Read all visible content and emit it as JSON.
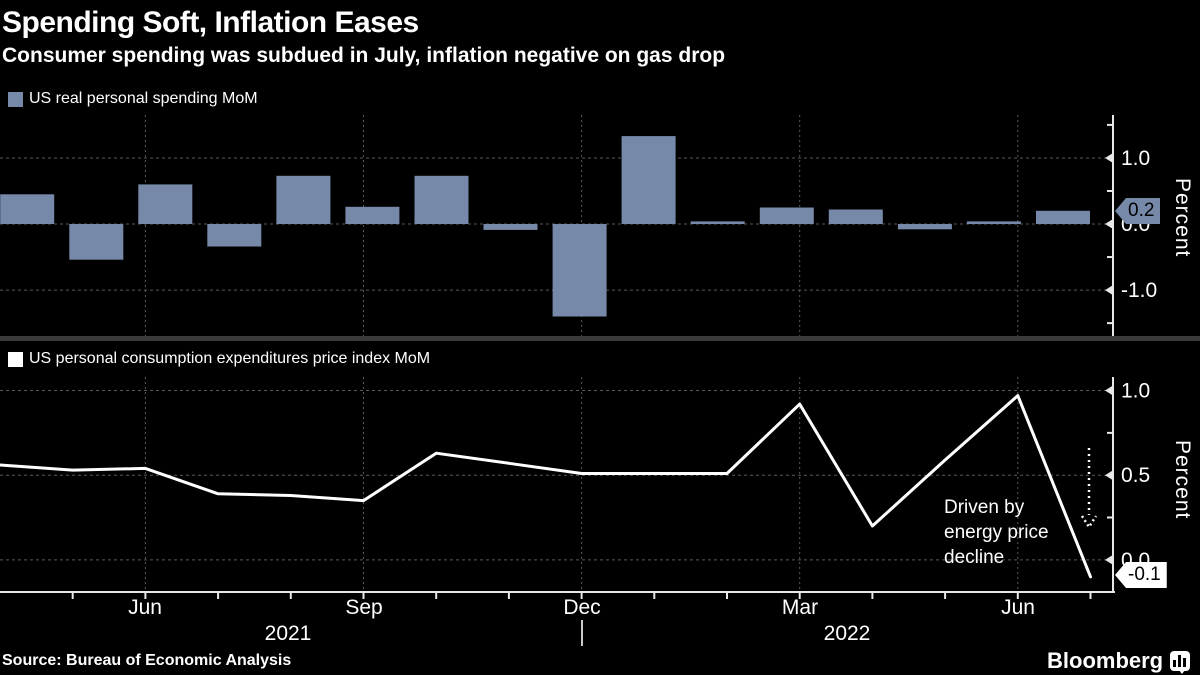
{
  "header": {
    "title": "Spending Soft, Inflation Eases",
    "subtitle": "Consumer spending was subdued in July, inflation negative on gas drop"
  },
  "colors": {
    "background": "#000000",
    "bar": "#7689a9",
    "line": "#ffffff",
    "grid": "#5a5a5a",
    "axis": "#e8e8e8",
    "divider": "#3a3a3a",
    "badge_bar_bg": "#7689a9",
    "badge_line_bg": "#ffffff"
  },
  "chart_data": [
    {
      "type": "bar",
      "legend": "US real personal spending MoM",
      "ylabel": "Percent",
      "categories": [
        "Apr 2021",
        "May 2021",
        "Jun 2021",
        "Jul 2021",
        "Aug 2021",
        "Sep 2021",
        "Oct 2021",
        "Nov 2021",
        "Dec 2021",
        "Jan 2022",
        "Feb 2022",
        "Mar 2022",
        "Apr 2022",
        "May 2022",
        "Jun 2022",
        "Jul 2022"
      ],
      "values": [
        0.45,
        -0.54,
        0.6,
        -0.34,
        0.73,
        0.26,
        0.73,
        -0.09,
        -1.4,
        1.33,
        0.04,
        0.25,
        0.22,
        -0.08,
        0.04,
        0.2
      ],
      "ylim": [
        -1.71,
        1.65
      ],
      "yticks_major": [
        {
          "value": 1.0,
          "label": "1.0"
        },
        {
          "value": 0.0,
          "label": "0.0"
        },
        {
          "value": -1.0,
          "label": "-1.0"
        }
      ],
      "yticks_minor": [
        1.5,
        0.5,
        -0.5,
        -1.5
      ],
      "grid": "dashed",
      "legend_position": "top-left",
      "end_badge": "0.2"
    },
    {
      "type": "line",
      "legend": "US personal consumption expenditures  price index MoM",
      "ylabel": "Percent",
      "categories": [
        "Apr 2021",
        "May 2021",
        "Jun 2021",
        "Jul 2021",
        "Aug 2021",
        "Sep 2021",
        "Oct 2021",
        "Nov 2021",
        "Dec 2021",
        "Jan 2022",
        "Feb 2022",
        "Mar 2022",
        "Apr 2022",
        "May 2022",
        "Jun 2022",
        "Jul 2022"
      ],
      "values": [
        0.56,
        0.53,
        0.54,
        0.39,
        0.38,
        0.35,
        0.63,
        0.57,
        0.51,
        0.51,
        0.51,
        0.92,
        0.2,
        0.59,
        0.97,
        -0.1
      ],
      "ylim": [
        -0.19,
        1.08
      ],
      "yticks_major": [
        {
          "value": 1.0,
          "label": "1.0"
        },
        {
          "value": 0.5,
          "label": "0.5"
        },
        {
          "value": 0.0,
          "label": "0.0"
        }
      ],
      "yticks_minor": [
        0.75,
        0.25
      ],
      "grid": "dashed",
      "legend_position": "top-left",
      "end_badge": "-0.1",
      "annotation": {
        "lines": [
          "Driven by",
          "energy price",
          "decline"
        ]
      }
    }
  ],
  "x_axis": {
    "month_labels": [
      {
        "label": "Jun",
        "month_index": 2
      },
      {
        "label": "Sep",
        "month_index": 5
      },
      {
        "label": "Dec",
        "month_index": 8
      },
      {
        "label": "Mar",
        "month_index": 11
      },
      {
        "label": "Jun",
        "month_index": 14
      }
    ],
    "year_labels": [
      {
        "label": "2021"
      },
      {
        "label": "2022"
      }
    ]
  },
  "source": "Source: Bureau of Economic Analysis",
  "branding": "Bloomberg"
}
